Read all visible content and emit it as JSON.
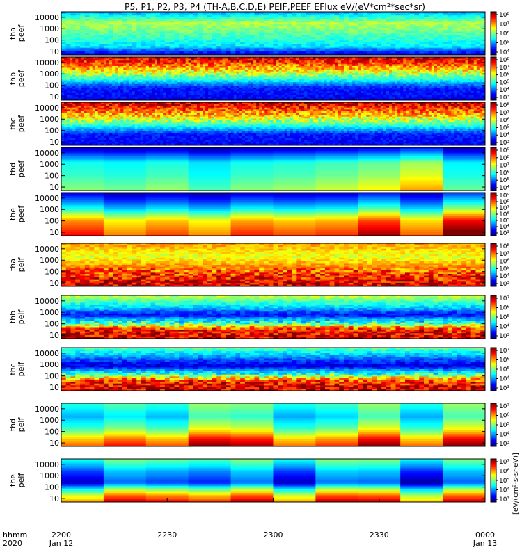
{
  "chart_data": {
    "type": "heatmap",
    "title": "P5, P1, P2, P3, P4 (TH-A,B,C,D,E) PEIF,PEEF EFlux eV/(eV*cm²*sec*sr)",
    "colorbar_label": "[eV/(cm²-s-sr-eV)]",
    "xaxis": {
      "row_labels": [
        "hhmm",
        "2020"
      ],
      "ticks": [
        {
          "time": "2200",
          "date": "Jan 12"
        },
        {
          "time": "2230",
          "date": ""
        },
        {
          "time": "2300",
          "date": ""
        },
        {
          "time": "2330",
          "date": ""
        },
        {
          "time": "0000",
          "date": "Jan 13"
        }
      ]
    },
    "y_ticks": [
      "10000",
      "1000",
      "100",
      "10"
    ],
    "panels": [
      {
        "id": "tha-peef",
        "probe": "tha",
        "product": "peef",
        "ylim_eV": [
          5,
          30000
        ],
        "pattern": "flat",
        "bands": [
          [
            0.0,
            0.3
          ],
          [
            0.25,
            0.55
          ],
          [
            0.55,
            0.45
          ],
          [
            0.82,
            0.35
          ],
          [
            1.0,
            0.1
          ]
        ],
        "cbar": {
          "min_exp": 4,
          "max_exp": 8,
          "labels": [
            "10⁸",
            "10⁷",
            "10⁶",
            "10⁵",
            "10⁴"
          ]
        }
      },
      {
        "id": "thb-peef",
        "probe": "thb",
        "product": "peef",
        "ylim_eV": [
          5,
          30000
        ],
        "pattern": "stripe",
        "bands": [
          [
            0.0,
            0.92
          ],
          [
            0.25,
            0.7
          ],
          [
            0.5,
            0.42
          ],
          [
            0.72,
            0.15
          ],
          [
            1.0,
            0.12
          ]
        ],
        "cbar": {
          "min_exp": 3,
          "max_exp": 8,
          "labels": [
            "10⁸",
            "10⁷",
            "10⁶",
            "10⁵",
            "10⁴",
            "10³"
          ]
        }
      },
      {
        "id": "thc-peef",
        "probe": "thc",
        "product": "peef",
        "ylim_eV": [
          5,
          30000
        ],
        "pattern": "stripe",
        "bands": [
          [
            0.0,
            0.92
          ],
          [
            0.3,
            0.68
          ],
          [
            0.55,
            0.4
          ],
          [
            0.75,
            0.15
          ],
          [
            1.0,
            0.12
          ]
        ],
        "cbar": {
          "min_exp": 3,
          "max_exp": 8,
          "labels": [
            "10⁸",
            "10⁷",
            "10⁶",
            "10⁵",
            "10⁴",
            "10³"
          ]
        }
      },
      {
        "id": "thd-peef",
        "probe": "thd",
        "product": "peef",
        "ylim_eV": [
          5,
          30000
        ],
        "pattern": "blocky",
        "bands": [
          [
            0.0,
            0.1
          ],
          [
            0.35,
            0.45
          ],
          [
            0.65,
            0.5
          ],
          [
            1.0,
            0.6
          ]
        ],
        "cbar": {
          "min_exp": 4,
          "max_exp": 9,
          "labels": [
            "10⁹",
            "10⁸",
            "10⁷",
            "10⁶",
            "10⁵",
            "10⁴"
          ]
        }
      },
      {
        "id": "the-peef",
        "probe": "the",
        "product": "peef",
        "ylim_eV": [
          5,
          30000
        ],
        "pattern": "blocky",
        "bands": [
          [
            0.0,
            0.12
          ],
          [
            0.35,
            0.4
          ],
          [
            0.65,
            0.75
          ],
          [
            1.0,
            0.9
          ]
        ],
        "cbar": {
          "min_exp": 3,
          "max_exp": 9,
          "labels": [
            "10⁹",
            "10⁸",
            "10⁷",
            "10⁶",
            "10⁵",
            "10⁴",
            "10³"
          ]
        }
      },
      {
        "id": "tha-peif",
        "probe": "tha",
        "product": "peif",
        "ylim_eV": [
          5,
          30000
        ],
        "pattern": "ion_low",
        "bands": [
          [
            0.0,
            0.72
          ],
          [
            0.3,
            0.6
          ],
          [
            0.55,
            0.75
          ],
          [
            0.8,
            0.85
          ],
          [
            1.0,
            0.92
          ]
        ],
        "cbar": {
          "min_exp": 3,
          "max_exp": 8,
          "labels": [
            "10⁸",
            "10⁷",
            "10⁶",
            "10⁵",
            "10⁴",
            "10³"
          ]
        }
      },
      {
        "id": "thb-peif",
        "probe": "thb",
        "product": "peif",
        "ylim_eV": [
          5,
          30000
        ],
        "pattern": "ion",
        "bands": [
          [
            0.0,
            0.55
          ],
          [
            0.3,
            0.3
          ],
          [
            0.45,
            0.12
          ],
          [
            0.65,
            0.45
          ],
          [
            0.8,
            0.85
          ],
          [
            1.0,
            0.92
          ]
        ],
        "cbar": {
          "min_exp": 3,
          "max_exp": 7,
          "labels": [
            "10⁷",
            "10⁶",
            "10⁵",
            "10⁴",
            "10³"
          ]
        }
      },
      {
        "id": "thc-peif",
        "probe": "thc",
        "product": "peif",
        "ylim_eV": [
          5,
          30000
        ],
        "pattern": "ion",
        "bands": [
          [
            0.0,
            0.45
          ],
          [
            0.25,
            0.22
          ],
          [
            0.42,
            0.08
          ],
          [
            0.6,
            0.4
          ],
          [
            0.8,
            0.85
          ],
          [
            1.0,
            0.92
          ]
        ],
        "cbar": {
          "min_exp": 3,
          "max_exp": 7,
          "labels": [
            "10⁷",
            "10⁶",
            "10⁵",
            "10⁴",
            "10³"
          ]
        }
      },
      {
        "id": "thd-peif",
        "probe": "thd",
        "product": "peif",
        "ylim_eV": [
          5,
          30000
        ],
        "pattern": "blocky_ion",
        "bands": [
          [
            0.0,
            0.45
          ],
          [
            0.3,
            0.35
          ],
          [
            0.6,
            0.5
          ],
          [
            0.85,
            0.75
          ],
          [
            1.0,
            0.85
          ]
        ],
        "cbar": {
          "min_exp": 3,
          "max_exp": 7,
          "labels": [
            "10⁷",
            "10⁶",
            "10⁵",
            "10⁴",
            "10³"
          ]
        }
      },
      {
        "id": "the-peif",
        "probe": "the",
        "product": "peif",
        "ylim_eV": [
          5,
          30000
        ],
        "pattern": "blocky_ion",
        "bands": [
          [
            0.0,
            0.45
          ],
          [
            0.3,
            0.25
          ],
          [
            0.55,
            0.15
          ],
          [
            0.8,
            0.6
          ],
          [
            1.0,
            0.82
          ]
        ],
        "cbar": {
          "min_exp": 3,
          "max_exp": 7,
          "labels": [
            "10⁷",
            "10⁶",
            "10⁵",
            "10⁴",
            "10³"
          ]
        }
      }
    ]
  }
}
